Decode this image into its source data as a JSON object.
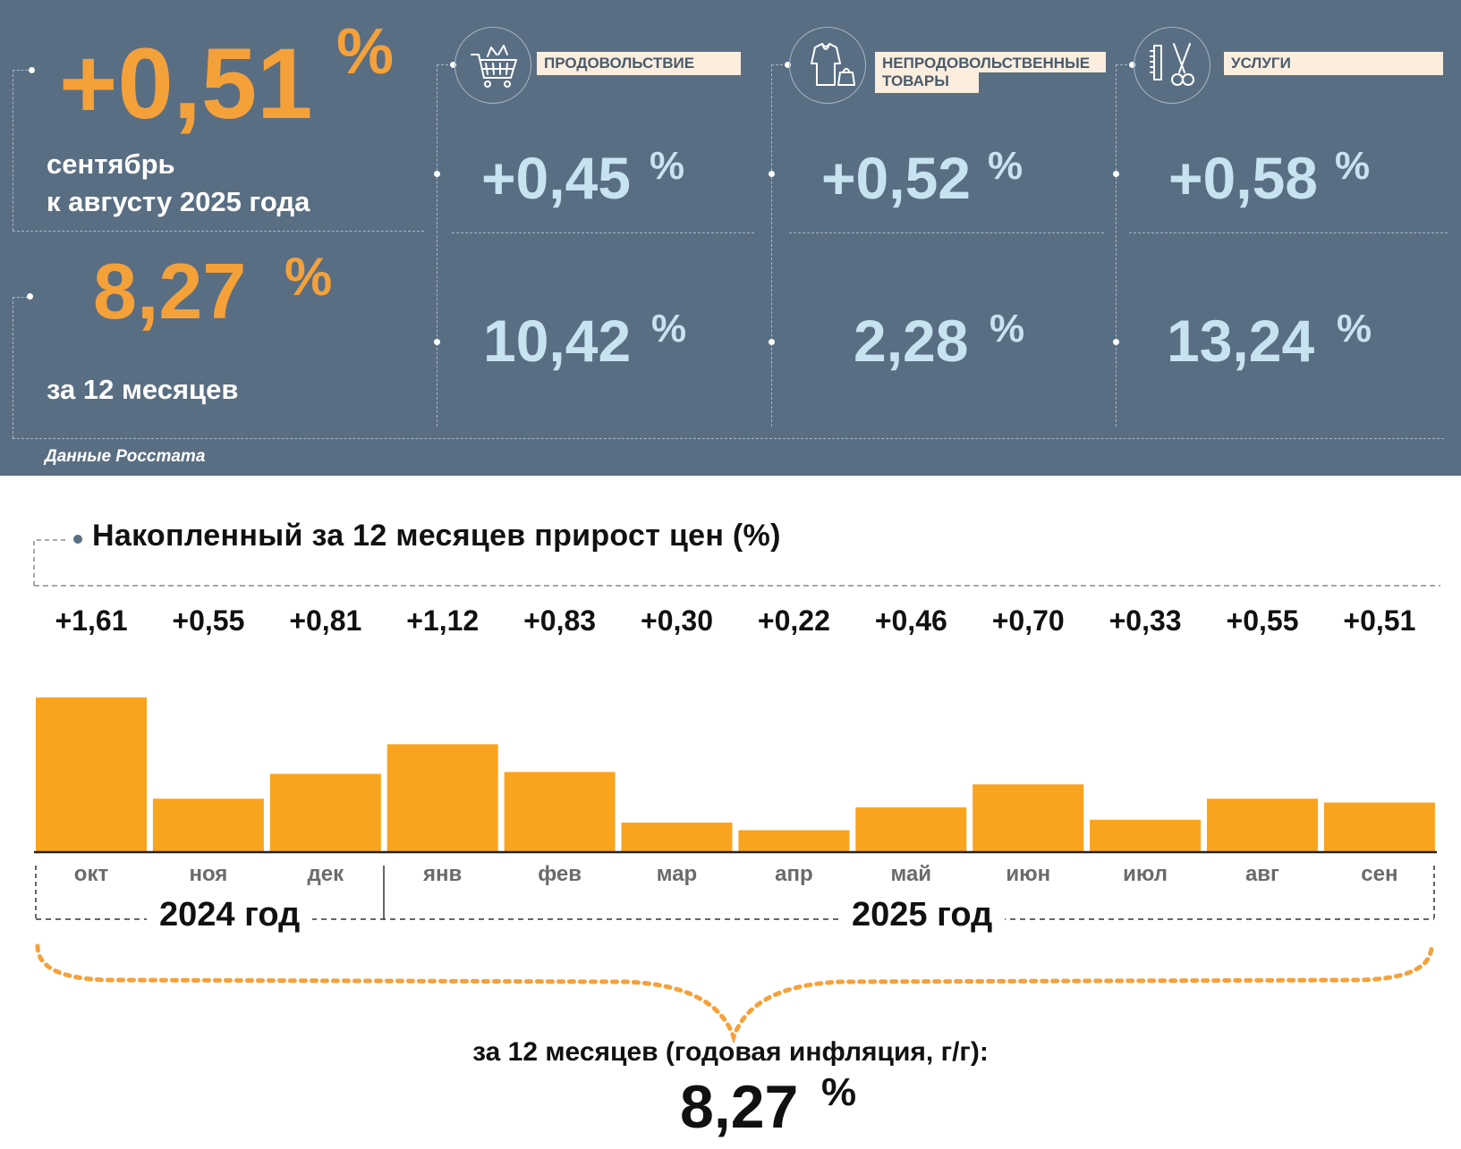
{
  "summary": {
    "monthly_value": "+0,51",
    "monthly_unit": "%",
    "monthly_caption_line1": "сентябрь",
    "monthly_caption_line2": "к августу 2025 года",
    "annual_value": "8,27",
    "annual_unit": "%",
    "annual_caption": "за 12 месяцев",
    "source": "Данные Росстата"
  },
  "categories": [
    {
      "name": "ПРОДОВОЛЬСТВИЕ",
      "icon": "shopping-cart-icon",
      "monthly": "+0,45",
      "annual": "10,42",
      "unit": "%"
    },
    {
      "name": "НЕПРОДОВОЛЬСТВЕННЫЕ ТОВАРЫ",
      "name_line1": "НЕПРОДОВОЛЬСТВЕННЫЕ",
      "name_line2": "ТОВАРЫ",
      "icon": "clothes-icon",
      "monthly": "+0,52",
      "annual": "2,28",
      "unit": "%"
    },
    {
      "name": "УСЛУГИ",
      "icon": "scissors-comb-icon",
      "monthly": "+0,58",
      "annual": "13,24",
      "unit": "%"
    }
  ],
  "colors": {
    "panel_bg": "#596e83",
    "accent_orange": "#f5a13a",
    "accent_blue": "#c8e3f0",
    "bar": "#f9a41e"
  },
  "chart_data": {
    "type": "bar",
    "title": "Накопленный за 12 месяцев прирост цен (%)",
    "categories": [
      "окт",
      "ноя",
      "дек",
      "янв",
      "фев",
      "мар",
      "апр",
      "май",
      "июн",
      "июл",
      "авг",
      "сен"
    ],
    "values": [
      1.61,
      0.55,
      0.81,
      1.12,
      0.83,
      0.3,
      0.22,
      0.46,
      0.7,
      0.33,
      0.55,
      0.51
    ],
    "value_labels": [
      "+1,61",
      "+0,55",
      "+0,81",
      "+1,12",
      "+0,83",
      "+0,30",
      "+0,22",
      "+0,46",
      "+0,70",
      "+0,33",
      "+0,55",
      "+0,51"
    ],
    "years": [
      "2024 год",
      "2025 год"
    ],
    "ylim": [
      0,
      1.61
    ],
    "grid": false,
    "summary_label": "за 12 месяцев (годовая инфляция, г/г):",
    "summary_value": "8,27",
    "summary_unit": "%"
  }
}
